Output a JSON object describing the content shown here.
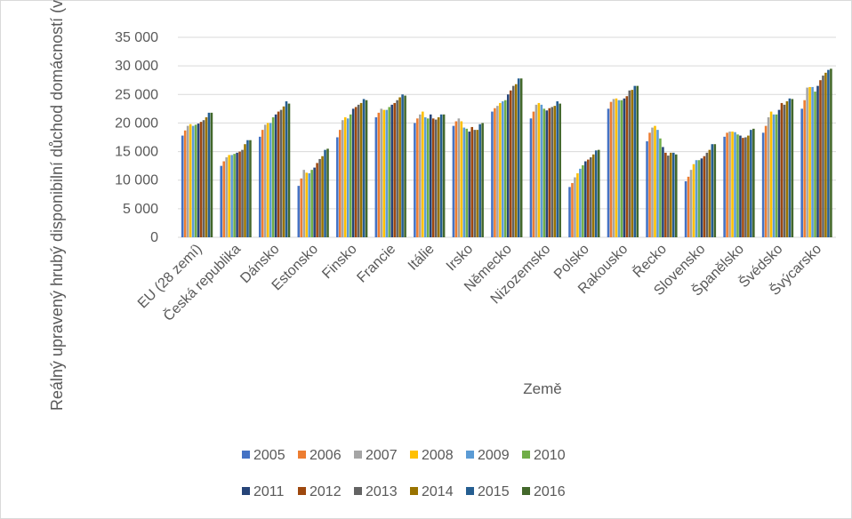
{
  "chart_data": {
    "type": "bar",
    "y_label": "Reálný upravený hrubý disponibilní důchod domácností (v Kč)",
    "x_label": "Země",
    "categories": [
      "EU (28 zemí)",
      "Česká republika",
      "Dánsko",
      "Estonsko",
      "Finsko",
      "Francie",
      "Itálie",
      "Irsko",
      "Německo",
      "Nizozemsko",
      "Polsko",
      "Rakousko",
      "Řecko",
      "Slovensko",
      "Španělsko",
      "Švédsko",
      "Švýcarsko"
    ],
    "ylim": [
      0,
      35000
    ],
    "yticks": [
      0,
      {
        "value": 5000,
        "label": "5 000"
      },
      {
        "value": 10000,
        "label": "10 000"
      },
      {
        "value": 15000,
        "label": "15 000"
      },
      {
        "value": 20000,
        "label": "20 000"
      },
      {
        "value": 25000,
        "label": "25 000"
      },
      {
        "value": 30000,
        "label": "30 000"
      },
      {
        "value": 35000,
        "label": "35 000"
      }
    ],
    "grid": true,
    "legend": "bottom",
    "series": [
      {
        "name": "2005",
        "color": "#4472c4",
        "values": [
          17800,
          12500,
          17600,
          9000,
          17500,
          21000,
          20000,
          19500,
          22000,
          20800,
          8800,
          22500,
          16800,
          9800,
          17600,
          18300,
          22500
        ]
      },
      {
        "name": "2006",
        "color": "#ed7d31",
        "values": [
          18700,
          13300,
          18800,
          10300,
          18800,
          21800,
          20800,
          20300,
          22600,
          22000,
          9500,
          23700,
          18300,
          10600,
          18300,
          19500,
          24000
        ]
      },
      {
        "name": "2007",
        "color": "#a5a5a5",
        "values": [
          19500,
          14000,
          19700,
          11800,
          20500,
          22500,
          21500,
          20800,
          23000,
          23200,
          10500,
          24200,
          19200,
          11800,
          18500,
          21000,
          26200
        ]
      },
      {
        "name": "2008",
        "color": "#ffc000",
        "values": [
          19800,
          14400,
          20000,
          11300,
          21000,
          22300,
          22000,
          20300,
          23500,
          23500,
          11200,
          24300,
          19500,
          12800,
          18500,
          22000,
          26300
        ]
      },
      {
        "name": "2009",
        "color": "#5b9bd5",
        "values": [
          19500,
          14400,
          20000,
          11200,
          20800,
          22300,
          21000,
          19200,
          23800,
          23200,
          12000,
          24000,
          18800,
          13500,
          18400,
          21500,
          26300
        ]
      },
      {
        "name": "2010",
        "color": "#70ad47",
        "values": [
          19700,
          14600,
          21000,
          11800,
          21500,
          22800,
          20800,
          19000,
          24000,
          22500,
          12600,
          24000,
          17300,
          13500,
          18000,
          21500,
          25500
        ]
      },
      {
        "name": "2011",
        "color": "#264478",
        "values": [
          19900,
          14800,
          21500,
          12200,
          22500,
          23200,
          21500,
          18500,
          25000,
          22200,
          13300,
          24300,
          15800,
          13800,
          17800,
          22300,
          26500
        ]
      },
      {
        "name": "2012",
        "color": "#9e480e",
        "values": [
          20200,
          15000,
          22000,
          13000,
          22800,
          23500,
          20800,
          19300,
          25700,
          22600,
          13600,
          24700,
          14800,
          14200,
          17400,
          23500,
          27500
        ]
      },
      {
        "name": "2013",
        "color": "#636363",
        "values": [
          20500,
          15300,
          22300,
          13700,
          23200,
          24000,
          20600,
          18800,
          26500,
          22800,
          14000,
          25700,
          14300,
          14800,
          17500,
          23200,
          28300
        ]
      },
      {
        "name": "2014",
        "color": "#997300",
        "values": [
          21000,
          16300,
          22900,
          14200,
          23500,
          24500,
          21000,
          18800,
          26800,
          23000,
          14500,
          25800,
          14800,
          15300,
          17800,
          23800,
          28800
        ]
      },
      {
        "name": "2015",
        "color": "#255e91",
        "values": [
          21800,
          17000,
          23800,
          15300,
          24200,
          25000,
          21500,
          19800,
          27800,
          23800,
          15200,
          26500,
          14800,
          16300,
          18800,
          24300,
          29300
        ]
      },
      {
        "name": "2016",
        "color": "#43682b",
        "values": [
          21800,
          17000,
          23400,
          15500,
          24000,
          24800,
          21500,
          20000,
          27800,
          23400,
          15300,
          26500,
          14500,
          16300,
          19000,
          24200,
          29500
        ]
      }
    ]
  }
}
